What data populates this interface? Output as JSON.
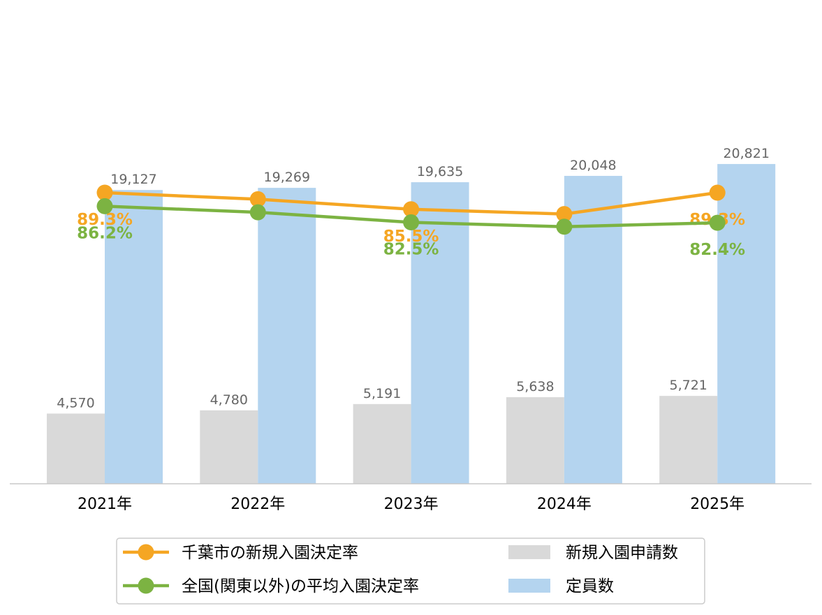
{
  "chart_data": {
    "type": "bar",
    "categories": [
      "2021年",
      "2022年",
      "2023年",
      "2024年",
      "2025年"
    ],
    "bar_series": [
      {
        "name": "新規入園申請数",
        "values": [
          4570,
          4780,
          5191,
          5638,
          5721
        ],
        "value_labels": [
          "4,570",
          "4,780",
          "5,191",
          "5,638",
          "5,721"
        ],
        "color": "#d9d9d9"
      },
      {
        "name": "定員数",
        "values": [
          19127,
          19269,
          19635,
          20048,
          20821
        ],
        "value_labels": [
          "19,127",
          "19,269",
          "19,635",
          "20,048",
          "20,821"
        ],
        "color": "#b4d4ef"
      }
    ],
    "bar_ylim": [
      0,
      30000
    ],
    "line_series": [
      {
        "name": "千葉市の新規入園決定率",
        "values": [
          89.3,
          87.8,
          85.5,
          84.4,
          89.3
        ],
        "labels": [
          "89.3%",
          "",
          "85.5%",
          "",
          "89.3%"
        ],
        "color": "#f5a623"
      },
      {
        "name": "全国(関東以外)の平均入園決定率",
        "values": [
          86.2,
          84.8,
          82.5,
          81.5,
          82.4
        ],
        "labels": [
          "86.2%",
          "",
          "82.5%",
          "",
          "82.4%"
        ],
        "color": "#7cb342"
      }
    ],
    "line_ylim": [
      60,
      100
    ],
    "legend_position": "bottom",
    "grid": false
  }
}
